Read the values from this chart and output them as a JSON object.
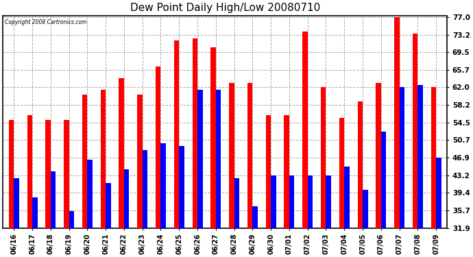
{
  "title": "Dew Point Daily High/Low 20080710",
  "copyright": "Copyright 2008 Cartronics.com",
  "dates": [
    "06/16",
    "06/17",
    "06/18",
    "06/19",
    "06/20",
    "06/21",
    "06/22",
    "06/23",
    "06/24",
    "06/25",
    "06/26",
    "06/27",
    "06/28",
    "06/29",
    "06/30",
    "07/01",
    "07/02",
    "07/03",
    "07/04",
    "07/05",
    "07/06",
    "07/07",
    "07/08",
    "07/09"
  ],
  "highs": [
    55.0,
    56.0,
    55.0,
    55.0,
    60.5,
    61.5,
    64.0,
    60.5,
    66.5,
    72.0,
    72.5,
    70.5,
    63.0,
    63.0,
    56.0,
    56.0,
    74.0,
    62.0,
    55.5,
    59.0,
    63.0,
    77.0,
    73.5,
    62.0
  ],
  "lows": [
    42.5,
    38.5,
    44.0,
    35.5,
    46.5,
    41.5,
    44.5,
    48.5,
    50.0,
    49.5,
    61.5,
    61.5,
    42.5,
    36.5,
    43.2,
    43.2,
    43.2,
    43.2,
    45.0,
    40.0,
    52.5,
    62.0,
    62.5,
    47.0
  ],
  "yticks": [
    31.9,
    35.7,
    39.4,
    43.2,
    46.9,
    50.7,
    54.5,
    58.2,
    62.0,
    65.7,
    69.5,
    73.2,
    77.0
  ],
  "ymin": 31.9,
  "ymax": 77.0,
  "high_color": "#FF0000",
  "low_color": "#0000FF",
  "bg_color": "#FFFFFF",
  "grid_color": "#AAAAAA",
  "bar_width": 0.28
}
